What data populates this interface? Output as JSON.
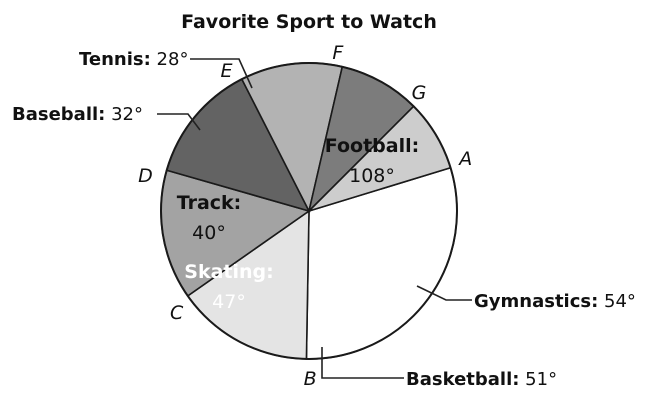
{
  "chart_data": {
    "type": "pie",
    "title": "Favorite Sport to Watch",
    "unit": "°",
    "slices": [
      {
        "name": "Football",
        "value": 108,
        "color": "#ffffff",
        "text_color": "#111111",
        "label_mode": "inside"
      },
      {
        "name": "Gymnastics",
        "value": 54,
        "color": "#e4e4e4",
        "text_color": "#111111",
        "label_mode": "outside"
      },
      {
        "name": "Basketball",
        "value": 51,
        "color": "#a3a3a3",
        "text_color": "#111111",
        "label_mode": "outside"
      },
      {
        "name": "Skating",
        "value": 47,
        "color": "#636363",
        "text_color": "#ffffff",
        "label_mode": "inside"
      },
      {
        "name": "Track",
        "value": 40,
        "color": "#b3b3b3",
        "text_color": "#111111",
        "label_mode": "inside"
      },
      {
        "name": "Baseball",
        "value": 32,
        "color": "#7c7c7c",
        "text_color": "#111111",
        "label_mode": "outside"
      },
      {
        "name": "Tennis",
        "value": 28,
        "color": "#cdcdcd",
        "text_color": "#111111",
        "label_mode": "outside"
      }
    ],
    "points": [
      "A",
      "B",
      "C",
      "D",
      "E",
      "F",
      "G"
    ]
  }
}
